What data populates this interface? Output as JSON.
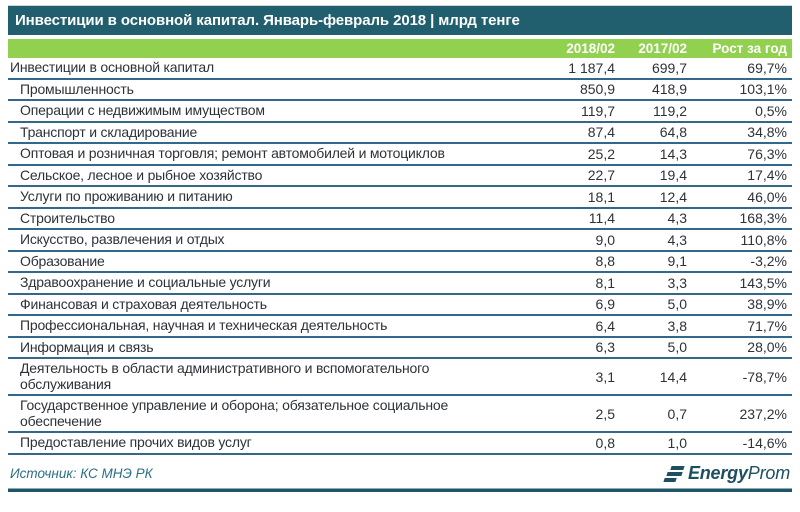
{
  "title": "Инвестиции в основной капитал. Январь-февраль 2018 | млрд тенге",
  "colors": {
    "title_bar": "#215F6E",
    "header_green": "#92D050",
    "row_line": "#34678C",
    "source_text": "#2A7085",
    "logo": "#1D4F60"
  },
  "table": {
    "columns": [
      "2018/02",
      "2017/02",
      "Рост за год"
    ],
    "rows": [
      {
        "label": "Инвестиции в основной капитал",
        "v2018": "1 187,4",
        "v2017": "699,7",
        "growth": "69,7%",
        "indent": false
      },
      {
        "label": "Промышленность",
        "v2018": "850,9",
        "v2017": "418,9",
        "growth": "103,1%",
        "indent": true
      },
      {
        "label": "Операции с недвижимым имуществом",
        "v2018": "119,7",
        "v2017": "119,2",
        "growth": "0,5%",
        "indent": true
      },
      {
        "label": "Транспорт и складирование",
        "v2018": "87,4",
        "v2017": "64,8",
        "growth": "34,8%",
        "indent": true
      },
      {
        "label": "Оптовая и розничная торговля; ремонт автомобилей и мотоциклов",
        "v2018": "25,2",
        "v2017": "14,3",
        "growth": "76,3%",
        "indent": true
      },
      {
        "label": "Сельское, лесное и рыбное хозяйство",
        "v2018": "22,7",
        "v2017": "19,4",
        "growth": "17,4%",
        "indent": true
      },
      {
        "label": "Услуги по проживанию и питанию",
        "v2018": "18,1",
        "v2017": "12,4",
        "growth": "46,0%",
        "indent": true
      },
      {
        "label": "Строительство",
        "v2018": "11,4",
        "v2017": "4,3",
        "growth": "168,3%",
        "indent": true
      },
      {
        "label": "Искусство, развлечения и отдых",
        "v2018": "9,0",
        "v2017": "4,3",
        "growth": "110,8%",
        "indent": true
      },
      {
        "label": "Образование",
        "v2018": "8,8",
        "v2017": "9,1",
        "growth": "-3,2%",
        "indent": true
      },
      {
        "label": "Здравоохранение и социальные услуги",
        "v2018": "8,1",
        "v2017": "3,3",
        "growth": "143,5%",
        "indent": true
      },
      {
        "label": "Финансовая и страховая деятельность",
        "v2018": "6,9",
        "v2017": "5,0",
        "growth": "38,9%",
        "indent": true
      },
      {
        "label": "Профессиональная, научная и техническая деятельность",
        "v2018": "6,4",
        "v2017": "3,8",
        "growth": "71,7%",
        "indent": true
      },
      {
        "label": "Информация и связь",
        "v2018": "6,3",
        "v2017": "5,0",
        "growth": "28,0%",
        "indent": true
      },
      {
        "label": "Деятельность в области административного и вспомогательного обслуживания",
        "v2018": "3,1",
        "v2017": "14,4",
        "growth": "-78,7%",
        "indent": true
      },
      {
        "label": "Государственное управление и оборона; обязательное социальное обеспечение",
        "v2018": "2,5",
        "v2017": "0,7",
        "growth": "237,2%",
        "indent": true
      },
      {
        "label": "Предоставление прочих видов услуг",
        "v2018": "0,8",
        "v2017": "1,0",
        "growth": "-14,6%",
        "indent": true
      }
    ]
  },
  "footer": {
    "source": "Источник: КС МНЭ РК",
    "logo_bold": "Energy",
    "logo_light": "Prom"
  },
  "chart_data": {
    "type": "table",
    "title": "Инвестиции в основной капитал. Январь-февраль 2018 | млрд тенге",
    "categories": [
      "Инвестиции в основной капитал",
      "Промышленность",
      "Операции с недвижимым имуществом",
      "Транспорт и складирование",
      "Оптовая и розничная торговля; ремонт автомобилей и мотоциклов",
      "Сельское, лесное и рыбное хозяйство",
      "Услуги по проживанию и питанию",
      "Строительство",
      "Искусство, развлечения и отдых",
      "Образование",
      "Здравоохранение и социальные услуги",
      "Финансовая и страховая деятельность",
      "Профессиональная, научная и техническая деятельность",
      "Информация и связь",
      "Деятельность в области административного и вспомогательного обслуживания",
      "Государственное управление и оборона; обязательное социальное обеспечение",
      "Предоставление прочих видов услуг"
    ],
    "series": [
      {
        "name": "2018/02",
        "values": [
          1187.4,
          850.9,
          119.7,
          87.4,
          25.2,
          22.7,
          18.1,
          11.4,
          9.0,
          8.8,
          8.1,
          6.9,
          6.4,
          6.3,
          3.1,
          2.5,
          0.8
        ]
      },
      {
        "name": "2017/02",
        "values": [
          699.7,
          418.9,
          119.2,
          64.8,
          14.3,
          19.4,
          12.4,
          4.3,
          4.3,
          9.1,
          3.3,
          5.0,
          3.8,
          5.0,
          14.4,
          0.7,
          1.0
        ]
      },
      {
        "name": "Рост за год, %",
        "values": [
          69.7,
          103.1,
          0.5,
          34.8,
          76.3,
          17.4,
          46.0,
          168.3,
          110.8,
          -3.2,
          143.5,
          38.9,
          71.7,
          28.0,
          -78.7,
          237.2,
          -14.6
        ]
      }
    ],
    "unit": "млрд тенге",
    "source": "КС МНЭ РК"
  }
}
